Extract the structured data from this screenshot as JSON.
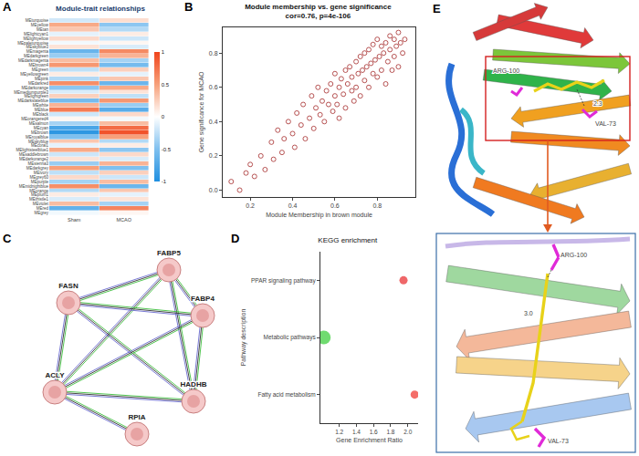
{
  "panel_letters": [
    "A",
    "B",
    "C",
    "D",
    "E"
  ],
  "chart_data": [
    {
      "type": "heatmap",
      "title": "Module-trait relationships",
      "columns": [
        "Sham",
        "MCAO"
      ],
      "rows": [
        "MEturquoise",
        "MEyellow",
        "MEtan",
        "MElightcyan1",
        "MElightyellow",
        "MEpaleturquoise",
        "MEskyblue3",
        "MEmagenta",
        "MEdarkgreen",
        "MEdarkmagenta",
        "MEbrown4",
        "MEgreen",
        "MEyellowgreen",
        "MEpink",
        "MEdarkred",
        "MEdarkorange",
        "MEmediumpurple3",
        "MElightgreen",
        "MEdarkslateblue",
        "MEwhite",
        "MEblue",
        "MEblack",
        "MEorangered4",
        "MEsalmon",
        "MEcyan",
        "MEbrown",
        "MEroyalblue",
        "MEskyblue",
        "MEcoral1",
        "MElightsteelblue1",
        "MEsaddlebrown",
        "MEdarkorange2",
        "MEsienna3",
        "MEdarkgrey",
        "MEivory",
        "MEgrey60",
        "MEpurple",
        "MEmidnightblue",
        "MEorange",
        "MEplum1",
        "MEthistle1",
        "MEviolet",
        "MEred",
        "MEgrey"
      ],
      "cells": [
        [
          -0.18,
          0.18
        ],
        [
          0.45,
          -0.45
        ],
        [
          0.3,
          -0.3
        ],
        [
          -0.1,
          0.1
        ],
        [
          0.2,
          -0.2
        ],
        [
          -0.05,
          0.05
        ],
        [
          0.15,
          -0.15
        ],
        [
          -0.62,
          0.62
        ],
        [
          -0.4,
          0.4
        ],
        [
          0.35,
          -0.35
        ],
        [
          0.55,
          -0.55
        ],
        [
          -0.25,
          0.25
        ],
        [
          0.1,
          -0.1
        ],
        [
          -0.3,
          0.3
        ],
        [
          0.6,
          -0.6
        ],
        [
          -0.45,
          0.45
        ],
        [
          -0.15,
          0.15
        ],
        [
          0.25,
          -0.25
        ],
        [
          -0.55,
          0.55
        ],
        [
          0.4,
          -0.4
        ],
        [
          0.7,
          -0.7
        ],
        [
          -0.2,
          0.2
        ],
        [
          0.05,
          -0.05
        ],
        [
          -0.35,
          0.35
        ],
        [
          -0.78,
          0.78
        ],
        [
          -0.92,
          0.92
        ],
        [
          -0.5,
          0.5
        ],
        [
          0.3,
          -0.3
        ],
        [
          -0.1,
          0.1
        ],
        [
          0.45,
          -0.45
        ],
        [
          -0.2,
          0.2
        ],
        [
          0.15,
          -0.15
        ],
        [
          -0.4,
          0.4
        ],
        [
          0.5,
          -0.5
        ],
        [
          -0.25,
          0.25
        ],
        [
          0.2,
          -0.2
        ],
        [
          -0.35,
          0.35
        ],
        [
          0.6,
          -0.6
        ],
        [
          -0.3,
          0.3
        ],
        [
          0.1,
          -0.1
        ],
        [
          -0.15,
          0.15
        ],
        [
          0.35,
          -0.35
        ],
        [
          -0.65,
          0.65
        ],
        [
          -0.05,
          0.05
        ]
      ],
      "colorbar": {
        "range": [
          -1,
          1
        ],
        "ticks": [
          -1,
          -0.5,
          0,
          0.5,
          1
        ]
      }
    },
    {
      "type": "scatter",
      "title": "Module membership vs. gene significance",
      "subtitle": "cor=0.76, p=4e-106",
      "xlabel": "Module Membership in brown module",
      "ylabel": "Gene significance for MCAO",
      "color": "#a52a2a",
      "marker": "open_circle",
      "x": [
        0.11,
        0.15,
        0.18,
        0.2,
        0.22,
        0.25,
        0.27,
        0.3,
        0.31,
        0.33,
        0.35,
        0.36,
        0.38,
        0.4,
        0.41,
        0.42,
        0.44,
        0.45,
        0.46,
        0.48,
        0.49,
        0.5,
        0.51,
        0.52,
        0.53,
        0.54,
        0.55,
        0.56,
        0.57,
        0.58,
        0.59,
        0.6,
        0.6,
        0.61,
        0.62,
        0.62,
        0.63,
        0.64,
        0.65,
        0.65,
        0.66,
        0.67,
        0.68,
        0.68,
        0.69,
        0.7,
        0.7,
        0.71,
        0.72,
        0.72,
        0.73,
        0.74,
        0.74,
        0.75,
        0.76,
        0.76,
        0.77,
        0.78,
        0.78,
        0.79,
        0.8,
        0.8,
        0.81,
        0.82,
        0.82,
        0.83,
        0.84,
        0.84,
        0.85,
        0.86,
        0.86,
        0.87,
        0.88,
        0.88,
        0.89,
        0.9,
        0.9,
        0.91,
        0.92,
        0.93
      ],
      "values": [
        0.05,
        0.0,
        0.1,
        0.15,
        0.08,
        0.2,
        0.12,
        0.28,
        0.18,
        0.35,
        0.22,
        0.3,
        0.4,
        0.33,
        0.25,
        0.45,
        0.38,
        0.5,
        0.3,
        0.42,
        0.55,
        0.36,
        0.48,
        0.6,
        0.44,
        0.52,
        0.4,
        0.58,
        0.5,
        0.62,
        0.46,
        0.55,
        0.68,
        0.5,
        0.6,
        0.42,
        0.65,
        0.56,
        0.7,
        0.48,
        0.62,
        0.72,
        0.58,
        0.66,
        0.52,
        0.75,
        0.6,
        0.68,
        0.78,
        0.55,
        0.7,
        0.64,
        0.8,
        0.72,
        0.6,
        0.82,
        0.74,
        0.68,
        0.85,
        0.76,
        0.66,
        0.88,
        0.78,
        0.7,
        0.84,
        0.8,
        0.62,
        0.86,
        0.75,
        0.9,
        0.82,
        0.7,
        0.88,
        0.78,
        0.84,
        0.92,
        0.72,
        0.86,
        0.8,
        0.88
      ],
      "xlim": [
        0.07,
        0.98
      ],
      "xticks": [
        0.2,
        0.4,
        0.6,
        0.8
      ],
      "ylim": [
        -0.04,
        0.95
      ],
      "yticks": [
        {
          "value": 0,
          "label": "0.0"
        },
        0.2,
        0.4,
        0.6,
        0.8
      ],
      "grid": false
    },
    {
      "type": "dot",
      "title": "KEGG enrichment",
      "xlabel": "Gene Enrichment Ratio",
      "ylabel": "Pathway description",
      "categories": [
        "PPAR signaling pathway",
        "Metabolic pathways",
        "Fatty acid metabolism"
      ],
      "values": [
        1.95,
        1.02,
        2.08
      ],
      "sizes": [
        3,
        5,
        3
      ],
      "colors": [
        "#e8262a",
        "#33cc33",
        "#f0302a"
      ],
      "xlim": [
        0.98,
        2.12
      ],
      "xticks": [
        1.2,
        1.4,
        1.6,
        1.8,
        {
          "value": 2,
          "label": "2.0"
        }
      ],
      "grid": false
    }
  ],
  "network": {
    "nodes": [
      "FABP5",
      "FASN",
      "FABP4",
      "ACLY",
      "HADHB",
      "RPIA"
    ],
    "edges": [
      [
        "FABP5",
        "FASN"
      ],
      [
        "FABP5",
        "FABP4"
      ],
      [
        "FABP5",
        "ACLY"
      ],
      [
        "FABP5",
        "HADHB"
      ],
      [
        "FASN",
        "FABP4"
      ],
      [
        "FASN",
        "ACLY"
      ],
      [
        "FASN",
        "HADHB"
      ],
      [
        "FABP4",
        "ACLY"
      ],
      [
        "FABP4",
        "HADHB"
      ],
      [
        "ACLY",
        "HADHB"
      ],
      [
        "ACLY",
        "RPIA"
      ]
    ]
  },
  "structure": {
    "top_labels": [
      "ARG-100",
      "VAL-73",
      "2.3"
    ],
    "inset_labels": [
      "ARG-100",
      "3.0",
      "VAL-73"
    ]
  }
}
